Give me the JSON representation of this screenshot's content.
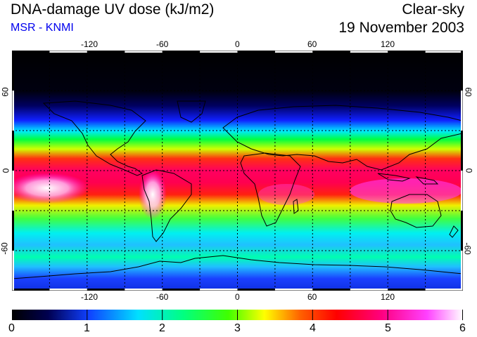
{
  "header": {
    "title": "DNA-damage UV dose (kJ/m2)",
    "credit": "MSR - KNMI",
    "condition": "Clear-sky",
    "date": "19 November 2003"
  },
  "map": {
    "lon_ticks": [
      "-120",
      "-60",
      "0",
      "60",
      "120"
    ],
    "lat_ticks": [
      "60",
      "0",
      "-60"
    ],
    "gridline_lons": [
      -150,
      -120,
      -90,
      -60,
      -30,
      0,
      30,
      60,
      90,
      120,
      150
    ],
    "gridline_lats": [
      -60,
      -30,
      0,
      30,
      60
    ],
    "lon_range": [
      -180,
      180
    ],
    "lat_range": [
      -90,
      90
    ]
  },
  "colorbar": {
    "labels": [
      "0",
      "1",
      "2",
      "3",
      "4",
      "5",
      "6"
    ],
    "range": [
      0,
      6
    ],
    "stops": [
      "#000000",
      "#000060",
      "#0000ff",
      "#00ffff",
      "#00ff00",
      "#ffff00",
      "#ff0000",
      "#ff00ff",
      "#ffffff"
    ]
  }
}
